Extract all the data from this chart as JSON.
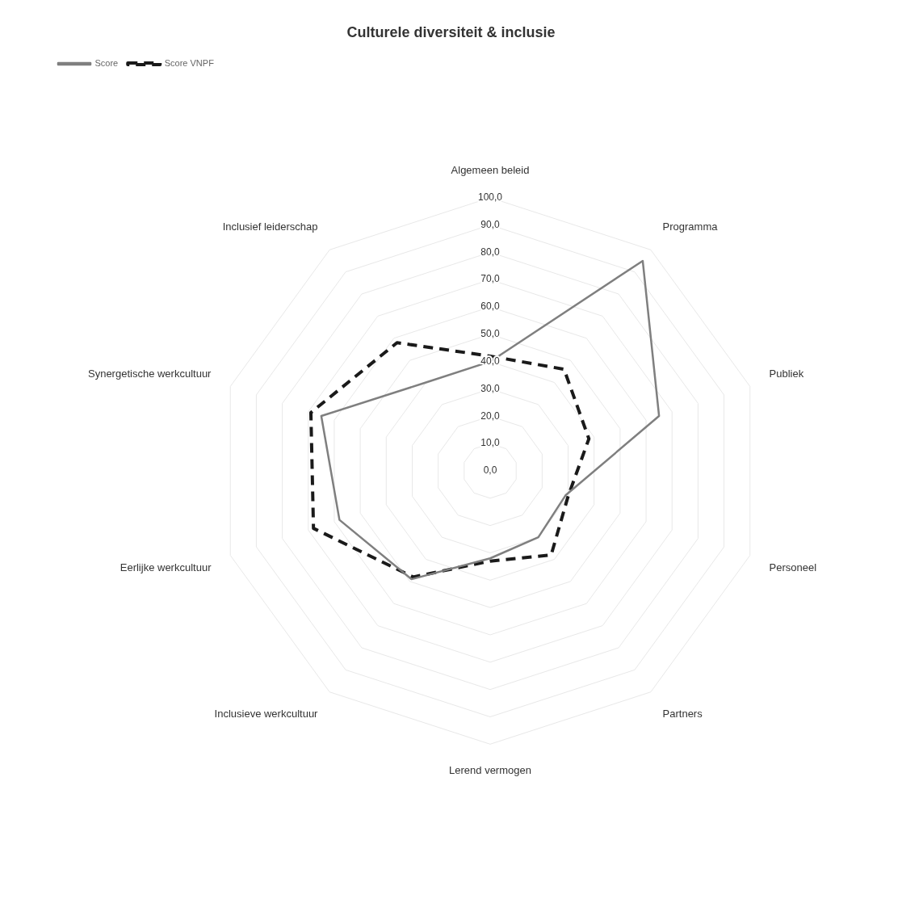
{
  "chart_data": {
    "type": "radar",
    "title": "Culturele diversiteit & inclusie",
    "categories": [
      "Algemeen beleid",
      "Programma",
      "Publiek",
      "Personeel",
      "Partners",
      "Lerend vermogen",
      "Inclusieve werkcultuur",
      "Eerlijke werkcultuur",
      "Synergetische werkcultuur",
      "Inclusief leiderschap"
    ],
    "series": [
      {
        "name": "Score",
        "color": "#7f7f7f",
        "line_style": "solid",
        "values": [
          40,
          95,
          65,
          29,
          30,
          32,
          49,
          58,
          65,
          40
        ]
      },
      {
        "name": "Score VNPF",
        "color": "#1a1a1a",
        "line_style": "dashed",
        "values": [
          42,
          46,
          38,
          30,
          38,
          33,
          48,
          68,
          69,
          58
        ]
      }
    ],
    "ylim": [
      0,
      100
    ],
    "yticks": [
      {
        "value": 0,
        "label": "0,0"
      },
      {
        "value": 10,
        "label": "10,0"
      },
      {
        "value": 20,
        "label": "20,0"
      },
      {
        "value": 30,
        "label": "30,0"
      },
      {
        "value": 40,
        "label": "40,0"
      },
      {
        "value": 50,
        "label": "50,0"
      },
      {
        "value": 60,
        "label": "60,0"
      },
      {
        "value": 70,
        "label": "70,0"
      },
      {
        "value": 80,
        "label": "80,0"
      },
      {
        "value": 90,
        "label": "90,0"
      },
      {
        "value": 100,
        "label": "100,0"
      }
    ],
    "grid": true,
    "legend": "top left",
    "marker": "none"
  }
}
